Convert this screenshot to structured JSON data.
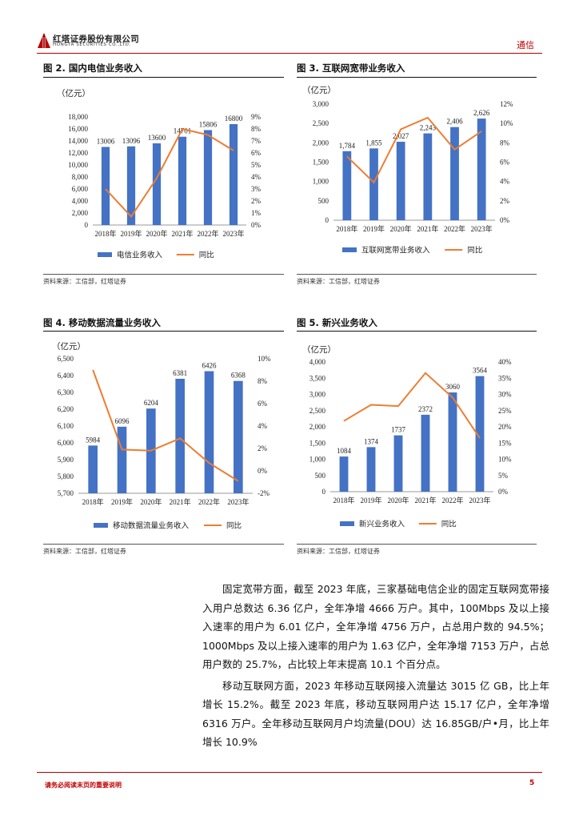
{
  "header": {
    "company_cn": "红塔证券股份有限公司",
    "company_en": "HONGTA SECURITIES CO.,LTD.",
    "industry": "通信"
  },
  "figures": [
    {
      "title": "图 2. 国内电信业务收入",
      "source": "资料来源：工信部，红塔证券",
      "chart_data": {
        "type": "bar",
        "unit": "（亿元）",
        "categories": [
          "2018年",
          "2019年",
          "2020年",
          "2021年",
          "2022年",
          "2023年"
        ],
        "series": [
          {
            "name": "电信业务收入",
            "values": [
              13006,
              13096,
              13600,
              14701,
              15806,
              16800
            ],
            "color": "#4472c4",
            "axis": "left"
          },
          {
            "name": "同比",
            "values": [
              3.0,
              0.7,
              3.9,
              8.0,
              7.5,
              6.2
            ],
            "color": "#ed7d31",
            "axis": "right",
            "type": "line"
          }
        ],
        "value_labels": [
          "13006",
          "13096",
          "13600",
          "14701",
          "15806",
          "16800"
        ],
        "ylim": [
          0,
          18000
        ],
        "yticks": [
          "0",
          "2,000",
          "4,000",
          "6,000",
          "8,000",
          "10,000",
          "12,000",
          "14,000",
          "16,000",
          "18,000"
        ],
        "y2lim": [
          0,
          9
        ],
        "y2ticks": [
          "0%",
          "1%",
          "2%",
          "3%",
          "4%",
          "5%",
          "6%",
          "7%",
          "8%",
          "9%"
        ]
      }
    },
    {
      "title": "图 3. 互联网宽带业务收入",
      "source": "资料来源：工信部，红塔证券",
      "chart_data": {
        "type": "bar",
        "unit": "（亿元）",
        "categories": [
          "2018年",
          "2019年",
          "2020年",
          "2021年",
          "2022年",
          "2023年"
        ],
        "series": [
          {
            "name": "互联网宽带业务收入",
            "values": [
              1784,
              1855,
              2027,
              2243,
              2406,
              2626
            ],
            "color": "#4472c4",
            "axis": "left"
          },
          {
            "name": "同比",
            "values": [
              6.6,
              3.9,
              9.4,
              10.6,
              7.3,
              9.2
            ],
            "color": "#ed7d31",
            "axis": "right",
            "type": "line"
          }
        ],
        "value_labels": [
          "1,784",
          "1,855",
          "2,027",
          "2,243",
          "2,406",
          "2,626"
        ],
        "ylim": [
          0,
          3000
        ],
        "yticks": [
          "0",
          "500",
          "1,000",
          "1,500",
          "2,000",
          "2,500",
          "3,000"
        ],
        "y2lim": [
          0,
          12
        ],
        "y2ticks": [
          "0%",
          "2%",
          "4%",
          "6%",
          "8%",
          "10%",
          "12%"
        ]
      }
    },
    {
      "title": "图 4. 移动数据流量业务收入",
      "source": "资料来源：工信部，红塔证券",
      "chart_data": {
        "type": "bar",
        "unit": "（亿元）",
        "categories": [
          "2018年",
          "2019年",
          "2020年",
          "2021年",
          "2022年",
          "2023年"
        ],
        "series": [
          {
            "name": "移动数据流量业务收入",
            "values": [
              5984,
              6096,
              6204,
              6381,
              6426,
              6368
            ],
            "color": "#4472c4",
            "axis": "left"
          },
          {
            "name": "同比",
            "values": [
              9.0,
              1.9,
              1.8,
              2.9,
              0.7,
              -0.9
            ],
            "color": "#ed7d31",
            "axis": "right",
            "type": "line"
          }
        ],
        "value_labels": [
          "5984",
          "6096",
          "6204",
          "6381",
          "6426",
          "6368"
        ],
        "ylim": [
          5700,
          6500
        ],
        "yticks": [
          "5,700",
          "5,800",
          "5,900",
          "6,000",
          "6,100",
          "6,200",
          "6,300",
          "6,400",
          "6,500"
        ],
        "y2lim": [
          -2,
          10
        ],
        "y2ticks": [
          "-2%",
          "0%",
          "2%",
          "4%",
          "6%",
          "8%",
          "10%"
        ]
      }
    },
    {
      "title": "图 5. 新兴业务收入",
      "source": "资料来源：工信部，红塔证券",
      "chart_data": {
        "type": "bar",
        "unit": "（亿元）",
        "categories": [
          "2018年",
          "2019年",
          "2020年",
          "2021年",
          "2022年",
          "2023年"
        ],
        "series": [
          {
            "name": "新兴业务收入",
            "values": [
              1084,
              1374,
              1737,
              2372,
              3060,
              3564
            ],
            "color": "#4472c4",
            "axis": "left"
          },
          {
            "name": "同比",
            "values": [
              21.8,
              26.8,
              26.4,
              36.6,
              29.0,
              16.5
            ],
            "color": "#ed7d31",
            "axis": "right",
            "type": "line"
          }
        ],
        "value_labels": [
          "1084",
          "1374",
          "1737",
          "2372",
          "3060",
          "3564"
        ],
        "ylim": [
          0,
          4000
        ],
        "yticks": [
          "0",
          "500",
          "1,000",
          "1,500",
          "2,000",
          "2,500",
          "3,000",
          "3,500",
          "4,000"
        ],
        "y2lim": [
          0,
          40
        ],
        "y2ticks": [
          "0%",
          "5%",
          "10%",
          "15%",
          "20%",
          "25%",
          "30%",
          "35%",
          "40%"
        ]
      }
    }
  ],
  "body": {
    "paragraphs": [
      "固定宽带方面，截至 2023 年底，三家基础电信企业的固定互联网宽带接入用户总数达 6.36 亿户，全年净增 4666 万户。其中，100Mbps 及以上接入速率的用户为 6.01 亿户，全年净增 4756 万户，占总用户数的 94.5%；1000Mbps 及以上接入速率的用户为 1.63 亿户，全年净增 7153 万户，占总用户数的 25.7%，占比较上年末提高 10.1 个百分点。",
      "移动互联网方面，2023 年移动互联网接入流量达 3015 亿 GB，比上年增长 15.2%。截至 2023 年底，移动互联网用户达 15.17 亿户，全年净增 6316 万户。全年移动互联网月户均流量(DOU）达 16.85GB/户•月，比上年增长 10.9%"
    ]
  },
  "footer": {
    "disclaimer": "请务必阅读末页的重要说明",
    "page": "5"
  }
}
